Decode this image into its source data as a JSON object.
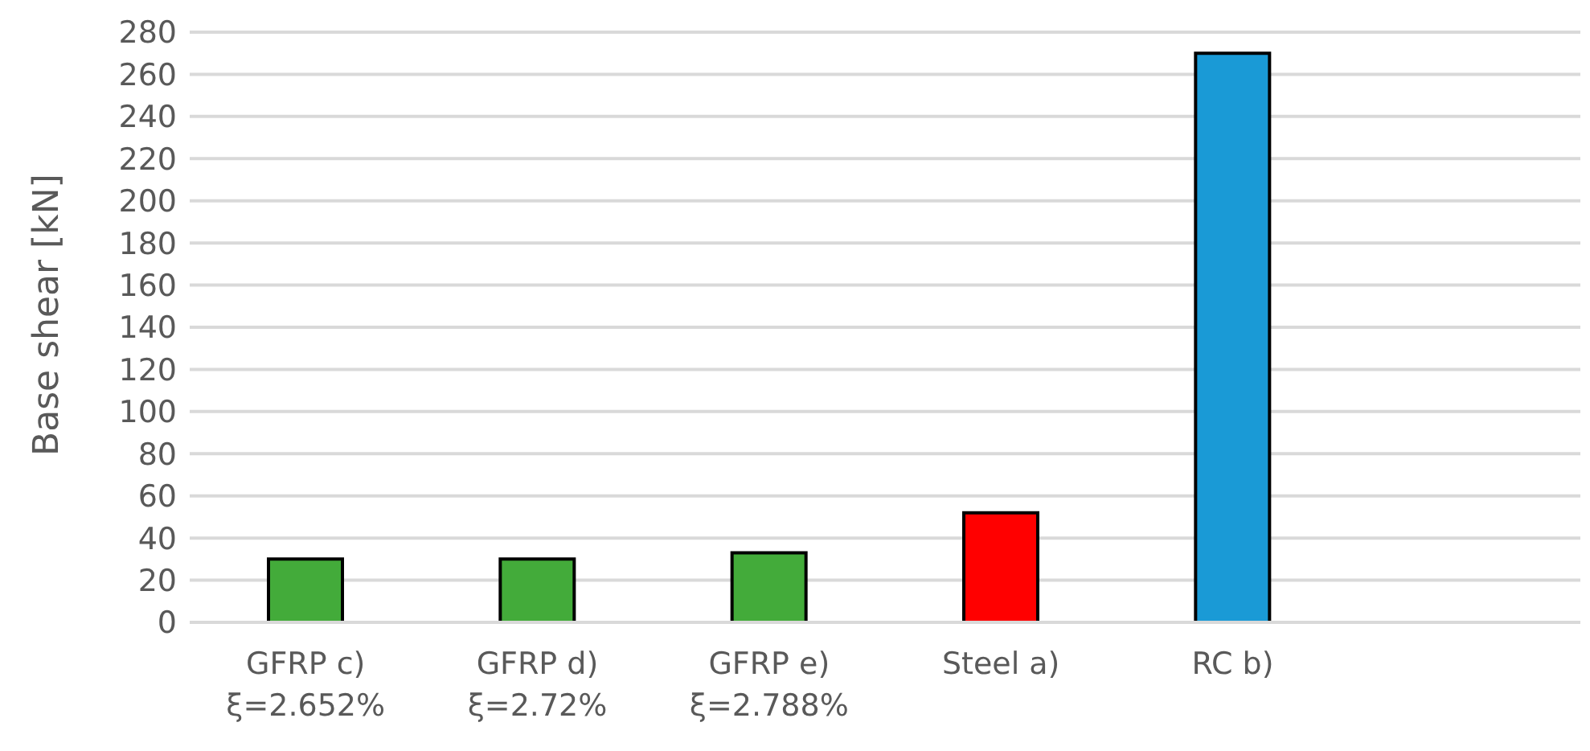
{
  "chart_data": {
    "type": "bar",
    "ylabel": "Base shear [kN]",
    "categories": [
      "GFRP c)\nξ=2.652%",
      "GFRP d)\nξ=2.72%",
      "GFRP e)\nξ=2.788%",
      "Steel a)",
      "RC b)",
      null
    ],
    "values": [
      30,
      30,
      33,
      52,
      270,
      null
    ],
    "colors": [
      "#43ab3a",
      "#43ab3a",
      "#43ab3a",
      "#ff0000",
      "#1a9ad6",
      "#1a9ad6"
    ],
    "ylim": [
      0,
      280
    ],
    "yticks": [
      0,
      20,
      40,
      60,
      80,
      100,
      120,
      140,
      160,
      180,
      200,
      220,
      240,
      260,
      280
    ],
    "grid": "y",
    "legend": false
  }
}
